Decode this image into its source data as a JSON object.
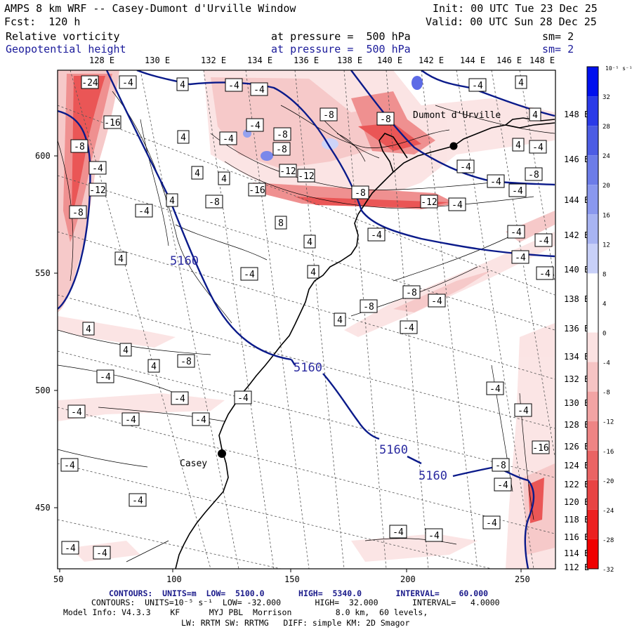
{
  "header": {
    "model_line": "AMPS 8 km WRF -- Casey-Dumont d'Urville Window",
    "init_line": "Init: 00 UTC Tue 23 Dec 25",
    "fcst_line": "Fcst:  120 h",
    "valid_line": "Valid: 00 UTC Sun 28 Dec 25",
    "field1_name": "Relative vorticity",
    "field1_level": "at pressure =  500 hPa",
    "field1_smooth": "sm= 2",
    "field2_name": "Geopotential height",
    "field2_level": "at pressure =  500 hPa",
    "field2_smooth": "sm= 2"
  },
  "top_longitudes": [
    "128 E",
    "130 E",
    "132 E",
    "134 E",
    "136 E",
    "138 E",
    "140 E",
    "142 E",
    "144 E",
    "146 E",
    "148 E"
  ],
  "right_longitudes": [
    "148 E",
    "146 E",
    "144 E",
    "142 E",
    "140 E",
    "138 E",
    "136 E",
    "134 E",
    "132 E",
    "130 E",
    "128 E",
    "126 E",
    "124 E",
    "122 E",
    "120 E",
    "118 E",
    "116 E",
    "114 E",
    "112 E"
  ],
  "x_ticks": [
    "50",
    "100",
    "150",
    "200",
    "250"
  ],
  "y_ticks": [
    "600",
    "550",
    "500",
    "450"
  ],
  "places": [
    {
      "name": "Dumont d'Urville"
    },
    {
      "name": "Casey"
    }
  ],
  "height_labels": [
    "5160",
    "5160",
    "5160",
    "5160"
  ],
  "colorbar": {
    "unit_label": "10⁻⁵ s⁻¹",
    "ticks": [
      "32",
      "28",
      "24",
      "20",
      "16",
      "12",
      "8",
      "4",
      "0",
      "-4",
      "-8",
      "-12",
      "-16",
      "-20",
      "-24",
      "-28",
      "-32"
    ],
    "colors": [
      "#0010ee",
      "#2a3ae8",
      "#4c5ce4",
      "#6c7ce8",
      "#8a98ee",
      "#a8b4f2",
      "#c8d0f8",
      "#ffffff",
      "#ffffff",
      "#fbe2e2",
      "#f6c4c4",
      "#f2a4a4",
      "#ee8484",
      "#ea6464",
      "#e84444",
      "#ec2020",
      "#f00000"
    ]
  },
  "vort_labels": [
    "-24",
    "-16",
    "-8",
    "-4",
    "-12",
    "-8",
    "-4",
    "4",
    "-4",
    "-4",
    "-8",
    "-8",
    "-8",
    "-4",
    "-4",
    "-8",
    "-12",
    "4",
    "4",
    "4",
    "4",
    "-16",
    "-4",
    "-12",
    "-8",
    "-8",
    "8",
    "4",
    "4",
    "-4",
    "-12",
    "-4",
    "-4",
    "4",
    "4",
    "4",
    "-4",
    "-4",
    "-8",
    "-4",
    "-4",
    "4",
    "-4",
    "-8",
    "-8",
    "4",
    "-4",
    "-4",
    "-4",
    "-4",
    "-4",
    "-4",
    "4",
    "4",
    "4",
    "-8",
    "-4",
    "-4",
    "-4",
    "-4",
    "-4",
    "-4",
    "-4",
    "-4",
    "-4",
    "-4",
    "-4",
    "-4",
    "-4",
    "-4",
    "-16",
    "-8",
    "-4",
    "-4"
  ],
  "footer": {
    "contours1": "CONTOURS:  UNITS=m  LOW=  5100.0       HIGH=  5340.0       INTERVAL=    60.000",
    "contours2": "CONTOURS:  UNITS=10⁻⁵ s⁻¹  LOW= -32.000       HIGH=  32.000       INTERVAL=   4.0000",
    "model_info": "Model Info: V4.3.3    KF      MYJ PBL  Morrison         8.0 km,  60 levels,",
    "physics": "LW: RRTM SW: RRTMG   DIFF: simple KM: 2D Smagor"
  },
  "colors": {
    "height_contour": "#0a1a8a",
    "positive_vort": "#e84444",
    "negative_vort": "#3a4ad8"
  }
}
